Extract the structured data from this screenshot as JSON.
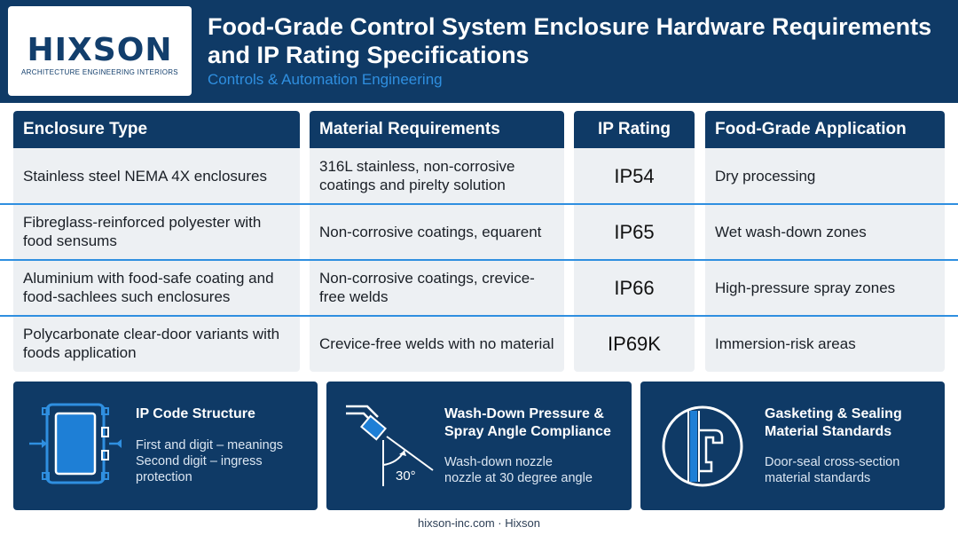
{
  "header": {
    "logo_word": "HIXSON",
    "logo_sub": "ARCHITECTURE ENGINEERING INTERIORS",
    "title": "Food-Grade Control System Enclosure Hardware Requirements and IP Rating Specifications",
    "subtitle": "Controls & Automation Engineering"
  },
  "table": {
    "headers": [
      "Enclosure Type",
      "Material Requirements",
      "IP Rating",
      "Food-Grade Application"
    ],
    "rows": [
      [
        "Stainless steel NEMA 4X enclosures",
        "316L stainless, non-corrosive coatings and pirelty solution",
        "IP54",
        "Dry processing"
      ],
      [
        "Fibreglass-reinforced polyester with food sensums",
        "Non-corrosive coatings, equarent",
        "IP65",
        "Wet wash-down zones"
      ],
      [
        "Aluminium with food-safe coating and food-sachlees such enclosures",
        "Non-corrosive coatings, crevice-free welds",
        "IP66",
        "High-pressure spray zones"
      ],
      [
        "Polycarbonate clear-door variants with foods application",
        "Crevice-free welds with no material",
        "IP69K",
        "Immersion-risk areas"
      ]
    ]
  },
  "cards": [
    {
      "title": "IP Code Structure",
      "desc_lines": [
        "First and digit – meanings",
        "Second digit – ingress",
        "protection"
      ],
      "icon": "enclosure-icon"
    },
    {
      "title_lines": [
        "Wash-Down Pressure &",
        "Spray Angle Compliance"
      ],
      "desc_lines": [
        "Wash-down nozzle",
        "nozzle at 30 degree angle"
      ],
      "angle_label": "30°",
      "icon": "spray-nozzle-icon"
    },
    {
      "title_lines": [
        "Gasketing & Sealing",
        "Material Standards"
      ],
      "desc_lines": [
        "Door-seal cross-section",
        "material standards"
      ],
      "icon": "door-seal-icon"
    }
  ],
  "footer": "hixson-inc.com · Hixson",
  "colors": {
    "navy": "#0f3a66",
    "accent": "#2f8fe0",
    "cell_bg": "#edf0f3"
  }
}
